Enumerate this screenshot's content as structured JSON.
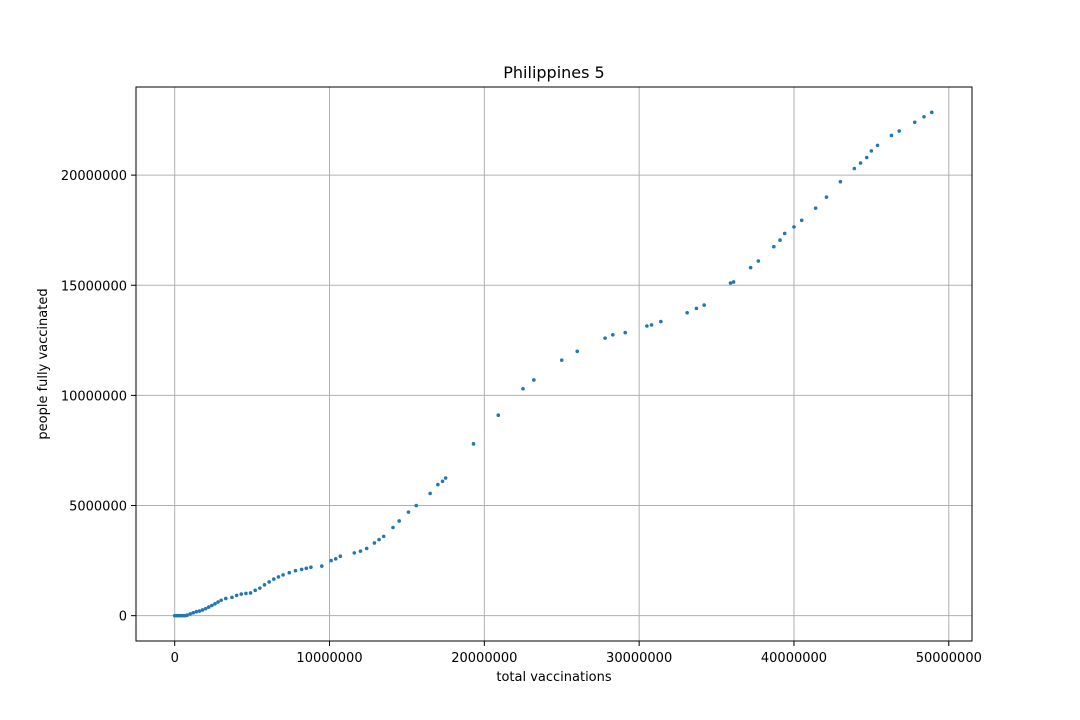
{
  "chart_data": {
    "type": "scatter",
    "title": "Philippines 5",
    "xlabel": "total vaccinations",
    "ylabel": "people fully vaccinated",
    "xlim": [
      -2500000,
      51500000
    ],
    "ylim": [
      -1150000,
      24000000
    ],
    "xticks": [
      0,
      10000000,
      20000000,
      30000000,
      40000000,
      50000000
    ],
    "xtick_labels": [
      "0",
      "10000000",
      "20000000",
      "30000000",
      "40000000",
      "50000000"
    ],
    "yticks": [
      0,
      5000000,
      10000000,
      15000000,
      20000000
    ],
    "ytick_labels": [
      "0",
      "5000000",
      "10000000",
      "15000000",
      "20000000"
    ],
    "grid": true,
    "marker_color": "#1f77b4",
    "series": [
      {
        "points": [
          [
            0,
            0
          ],
          [
            100000,
            0
          ],
          [
            200000,
            0
          ],
          [
            300000,
            0
          ],
          [
            400000,
            0
          ],
          [
            500000,
            0
          ],
          [
            600000,
            0
          ],
          [
            700000,
            0
          ],
          [
            800000,
            20000
          ],
          [
            1000000,
            80000
          ],
          [
            1200000,
            130000
          ],
          [
            1400000,
            180000
          ],
          [
            1600000,
            210000
          ],
          [
            1800000,
            260000
          ],
          [
            2000000,
            320000
          ],
          [
            2200000,
            390000
          ],
          [
            2400000,
            460000
          ],
          [
            2600000,
            540000
          ],
          [
            2800000,
            620000
          ],
          [
            3000000,
            700000
          ],
          [
            3300000,
            780000
          ],
          [
            3700000,
            830000
          ],
          [
            4000000,
            920000
          ],
          [
            4300000,
            980000
          ],
          [
            4600000,
            1010000
          ],
          [
            4900000,
            1030000
          ],
          [
            5200000,
            1150000
          ],
          [
            5500000,
            1250000
          ],
          [
            5800000,
            1400000
          ],
          [
            6100000,
            1530000
          ],
          [
            6400000,
            1660000
          ],
          [
            6700000,
            1760000
          ],
          [
            7000000,
            1850000
          ],
          [
            7400000,
            1950000
          ],
          [
            7800000,
            2040000
          ],
          [
            8200000,
            2100000
          ],
          [
            8500000,
            2150000
          ],
          [
            8800000,
            2200000
          ],
          [
            9500000,
            2250000
          ],
          [
            10100000,
            2500000
          ],
          [
            10400000,
            2580000
          ],
          [
            10700000,
            2700000
          ],
          [
            11600000,
            2850000
          ],
          [
            12000000,
            2930000
          ],
          [
            12400000,
            3050000
          ],
          [
            12900000,
            3300000
          ],
          [
            13200000,
            3450000
          ],
          [
            13500000,
            3600000
          ],
          [
            14100000,
            4000000
          ],
          [
            14500000,
            4300000
          ],
          [
            15100000,
            4700000
          ],
          [
            15600000,
            5000000
          ],
          [
            16500000,
            5550000
          ],
          [
            17000000,
            5950000
          ],
          [
            17300000,
            6100000
          ],
          [
            17500000,
            6250000
          ],
          [
            19300000,
            7800000
          ],
          [
            20900000,
            9100000
          ],
          [
            22500000,
            10300000
          ],
          [
            23200000,
            10700000
          ],
          [
            25000000,
            11600000
          ],
          [
            26000000,
            12000000
          ],
          [
            27800000,
            12600000
          ],
          [
            28300000,
            12750000
          ],
          [
            29100000,
            12850000
          ],
          [
            30500000,
            13150000
          ],
          [
            30800000,
            13200000
          ],
          [
            31400000,
            13350000
          ],
          [
            33100000,
            13750000
          ],
          [
            33700000,
            13950000
          ],
          [
            34200000,
            14100000
          ],
          [
            35900000,
            15100000
          ],
          [
            36100000,
            15150000
          ],
          [
            37200000,
            15800000
          ],
          [
            37700000,
            16100000
          ],
          [
            38700000,
            16750000
          ],
          [
            39100000,
            17050000
          ],
          [
            39400000,
            17350000
          ],
          [
            40000000,
            17650000
          ],
          [
            40500000,
            17950000
          ],
          [
            41400000,
            18500000
          ],
          [
            42100000,
            19000000
          ],
          [
            43000000,
            19700000
          ],
          [
            43900000,
            20300000
          ],
          [
            44300000,
            20550000
          ],
          [
            44700000,
            20800000
          ],
          [
            45000000,
            21100000
          ],
          [
            45400000,
            21350000
          ],
          [
            46300000,
            21800000
          ],
          [
            46800000,
            22000000
          ],
          [
            47800000,
            22400000
          ],
          [
            48400000,
            22650000
          ],
          [
            48900000,
            22850000
          ]
        ]
      }
    ]
  }
}
